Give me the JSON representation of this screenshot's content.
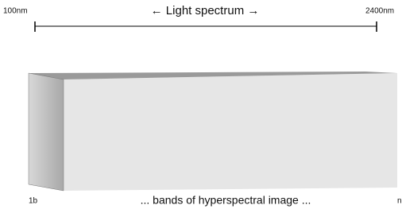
{
  "spectrum": {
    "start_label": "100nm",
    "title": "← Light spectrum →",
    "end_label": "2400nm"
  },
  "bands": {
    "first_label": "1b",
    "caption": "... bands of hyperspectral image ...",
    "last_label": "n"
  }
}
